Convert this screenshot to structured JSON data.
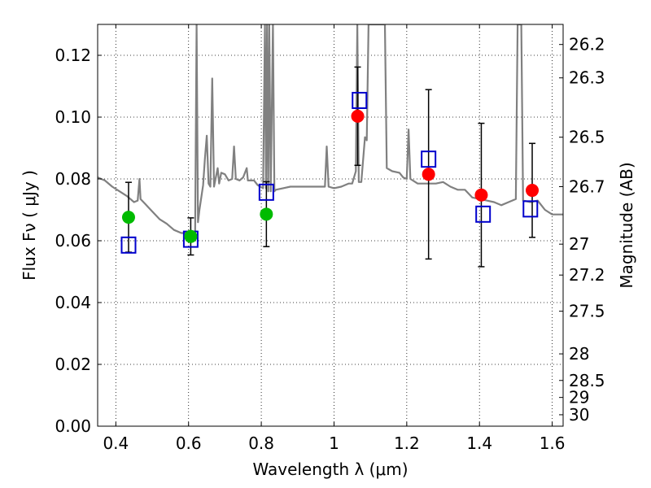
{
  "chart_data": {
    "type": "scatter",
    "xlabel": "Wavelength  λ (μm)",
    "ylabel": "Flux  Fν  ( μJy )",
    "y2label": "Magnitude (AB)",
    "xlim": [
      0.35,
      1.63
    ],
    "ylim": [
      0.0,
      0.13
    ],
    "grid": true,
    "x_ticks": [
      0.4,
      0.6,
      0.8,
      1.0,
      1.2,
      1.4,
      1.6
    ],
    "x_tick_labels": [
      "0.4",
      "0.6",
      "0.8",
      "1",
      "1.2",
      "1.4",
      "1.6"
    ],
    "y_ticks": [
      0.0,
      0.02,
      0.04,
      0.06,
      0.08,
      0.1,
      0.12
    ],
    "y_tick_labels": [
      "0.00",
      "0.02",
      "0.04",
      "0.06",
      "0.08",
      "0.10",
      "0.12"
    ],
    "magnitude_ticks": [
      {
        "label": "26.2",
        "flux": 0.1235
      },
      {
        "label": "26.3",
        "flux": 0.1127
      },
      {
        "label": "26.5",
        "flux": 0.0935
      },
      {
        "label": "26.7",
        "flux": 0.0775
      },
      {
        "label": "27",
        "flux": 0.0589
      },
      {
        "label": "27.2",
        "flux": 0.0489
      },
      {
        "label": "27.5",
        "flux": 0.0372
      },
      {
        "label": "28",
        "flux": 0.0234
      },
      {
        "label": "28.5",
        "flux": 0.0148
      },
      {
        "label": "29",
        "flux": 0.0093
      },
      {
        "label": "30",
        "flux": 0.0037
      }
    ],
    "series": [
      {
        "marker": "open-square",
        "color": "#0000cc",
        "points": [
          {
            "x": 0.435,
            "y": 0.0586,
            "err": 0.0
          },
          {
            "x": 0.606,
            "y": 0.0605,
            "err": 0.0
          },
          {
            "x": 0.814,
            "y": 0.0757,
            "err": 0.0
          },
          {
            "x": 1.07,
            "y": 0.1054,
            "err": 0.0
          },
          {
            "x": 1.26,
            "y": 0.0864,
            "err": 0.0
          },
          {
            "x": 1.41,
            "y": 0.0686,
            "err": 0.0
          },
          {
            "x": 1.54,
            "y": 0.0703,
            "err": 0.0
          }
        ]
      },
      {
        "marker": "filled-circle",
        "color": "#00bb00",
        "points": [
          {
            "x": 0.435,
            "y": 0.0676,
            "err": 0.0113
          },
          {
            "x": 0.606,
            "y": 0.0614,
            "err": 0.006
          },
          {
            "x": 0.814,
            "y": 0.0686,
            "err": 0.0105
          }
        ]
      },
      {
        "marker": "filled-circle",
        "color": "#ff0000",
        "points": [
          {
            "x": 1.065,
            "y": 0.1003,
            "err": 0.0159
          },
          {
            "x": 1.26,
            "y": 0.0815,
            "err": 0.0274
          },
          {
            "x": 1.405,
            "y": 0.0748,
            "err": 0.0232
          },
          {
            "x": 1.545,
            "y": 0.0763,
            "err": 0.0152
          }
        ]
      }
    ],
    "spectrum": {
      "color": "#808080",
      "points": [
        [
          0.35,
          0.0805
        ],
        [
          0.37,
          0.0795
        ],
        [
          0.39,
          0.0775
        ],
        [
          0.41,
          0.076
        ],
        [
          0.43,
          0.0745
        ],
        [
          0.45,
          0.0725
        ],
        [
          0.46,
          0.073
        ],
        [
          0.465,
          0.08
        ],
        [
          0.468,
          0.0735
        ],
        [
          0.48,
          0.072
        ],
        [
          0.5,
          0.0695
        ],
        [
          0.52,
          0.067
        ],
        [
          0.54,
          0.0655
        ],
        [
          0.56,
          0.0635
        ],
        [
          0.58,
          0.0625
        ],
        [
          0.6,
          0.0625
        ],
        [
          0.61,
          0.0615
        ],
        [
          0.618,
          0.0625
        ],
        [
          0.622,
          0.13
        ],
        [
          0.626,
          0.066
        ],
        [
          0.63,
          0.07
        ],
        [
          0.64,
          0.078
        ],
        [
          0.645,
          0.0865
        ],
        [
          0.65,
          0.094
        ],
        [
          0.655,
          0.0785
        ],
        [
          0.66,
          0.0775
        ],
        [
          0.665,
          0.1125
        ],
        [
          0.67,
          0.0775
        ],
        [
          0.68,
          0.0835
        ],
        [
          0.684,
          0.0785
        ],
        [
          0.69,
          0.082
        ],
        [
          0.7,
          0.0815
        ],
        [
          0.71,
          0.0795
        ],
        [
          0.72,
          0.08
        ],
        [
          0.725,
          0.0905
        ],
        [
          0.73,
          0.08
        ],
        [
          0.74,
          0.0795
        ],
        [
          0.75,
          0.0805
        ],
        [
          0.76,
          0.0835
        ],
        [
          0.763,
          0.0795
        ],
        [
          0.77,
          0.0795
        ],
        [
          0.78,
          0.0795
        ],
        [
          0.79,
          0.078
        ],
        [
          0.805,
          0.077
        ],
        [
          0.81,
          0.13
        ],
        [
          0.813,
          0.077
        ],
        [
          0.816,
          0.13
        ],
        [
          0.819,
          0.076
        ],
        [
          0.822,
          0.13
        ],
        [
          0.826,
          0.076
        ],
        [
          0.832,
          0.13
        ],
        [
          0.836,
          0.076
        ],
        [
          0.84,
          0.0765
        ],
        [
          0.86,
          0.077
        ],
        [
          0.88,
          0.0775
        ],
        [
          0.9,
          0.0775
        ],
        [
          0.92,
          0.0775
        ],
        [
          0.94,
          0.0775
        ],
        [
          0.96,
          0.0775
        ],
        [
          0.975,
          0.0775
        ],
        [
          0.98,
          0.0905
        ],
        [
          0.985,
          0.0775
        ],
        [
          1.0,
          0.077
        ],
        [
          1.02,
          0.0775
        ],
        [
          1.04,
          0.0785
        ],
        [
          1.05,
          0.0785
        ],
        [
          1.06,
          0.0825
        ],
        [
          1.064,
          0.13
        ],
        [
          1.068,
          0.079
        ],
        [
          1.075,
          0.079
        ],
        [
          1.085,
          0.0935
        ],
        [
          1.09,
          0.0925
        ],
        [
          1.095,
          0.13
        ],
        [
          1.14,
          0.13
        ],
        [
          1.145,
          0.0835
        ],
        [
          1.16,
          0.0825
        ],
        [
          1.18,
          0.082
        ],
        [
          1.19,
          0.0805
        ],
        [
          1.2,
          0.08
        ],
        [
          1.205,
          0.096
        ],
        [
          1.21,
          0.08
        ],
        [
          1.23,
          0.0785
        ],
        [
          1.25,
          0.0785
        ],
        [
          1.28,
          0.0785
        ],
        [
          1.3,
          0.079
        ],
        [
          1.32,
          0.0775
        ],
        [
          1.34,
          0.0765
        ],
        [
          1.36,
          0.0765
        ],
        [
          1.38,
          0.074
        ],
        [
          1.4,
          0.0735
        ],
        [
          1.42,
          0.073
        ],
        [
          1.44,
          0.0725
        ],
        [
          1.46,
          0.0715
        ],
        [
          1.48,
          0.0725
        ],
        [
          1.5,
          0.0735
        ],
        [
          1.505,
          0.13
        ],
        [
          1.515,
          0.13
        ],
        [
          1.52,
          0.073
        ],
        [
          1.54,
          0.0725
        ],
        [
          1.56,
          0.073
        ],
        [
          1.58,
          0.07
        ],
        [
          1.6,
          0.0685
        ],
        [
          1.63,
          0.0685
        ]
      ]
    }
  }
}
